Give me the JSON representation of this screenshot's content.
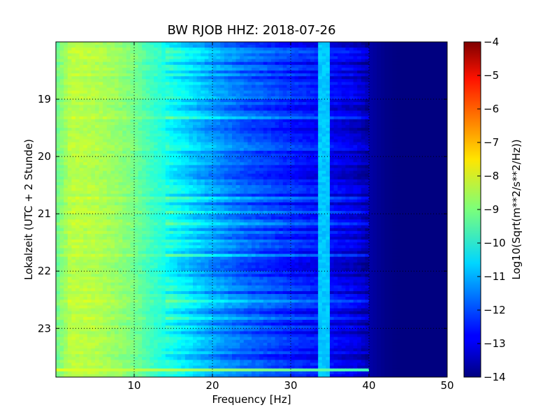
{
  "chart_data": {
    "type": "heatmap",
    "title": "BW RJOB HHZ: 2018-07-26",
    "xlabel": "Frequency [Hz]",
    "ylabel": "Lokalzeit (UTC + 2 Stunde)",
    "xlim": [
      0,
      50
    ],
    "ylim": [
      18.0,
      23.85
    ],
    "y_inverted": true,
    "x_ticks": [
      10,
      20,
      30,
      40,
      50
    ],
    "y_ticks": [
      19,
      20,
      21,
      22,
      23
    ],
    "grid": true,
    "colormap": "jet",
    "colorbar": {
      "label": "Log10(Sqrt(m**2/s**2/Hz))",
      "range": [
        -14,
        -4
      ],
      "ticks": [
        -4,
        -5,
        -6,
        -7,
        -8,
        -9,
        -10,
        -11,
        -12,
        -13,
        -14
      ]
    },
    "spectral_profile": {
      "frequency_hz": [
        0,
        2,
        5,
        8,
        10,
        12,
        14,
        16,
        18,
        20,
        22,
        24,
        26,
        28,
        30,
        32,
        34,
        36,
        38,
        39,
        40,
        42,
        44,
        46,
        50
      ],
      "log10_amplitude": [
        -9.2,
        -8.4,
        -8.5,
        -8.8,
        -9.1,
        -9.6,
        -10.0,
        -10.4,
        -10.8,
        -11.2,
        -11.5,
        -11.8,
        -12.0,
        -12.2,
        -12.4,
        -12.6,
        -12.7,
        -12.9,
        -13.1,
        -13.3,
        -13.6,
        -13.9,
        -14.0,
        -14.0,
        -14.0
      ]
    },
    "narrowband_feature": {
      "frequency_hz": 34.2,
      "log10_amplitude": -10.8
    },
    "broadband_event": {
      "time_local_h": 23.72,
      "log10_amplitude": -8.0
    }
  }
}
